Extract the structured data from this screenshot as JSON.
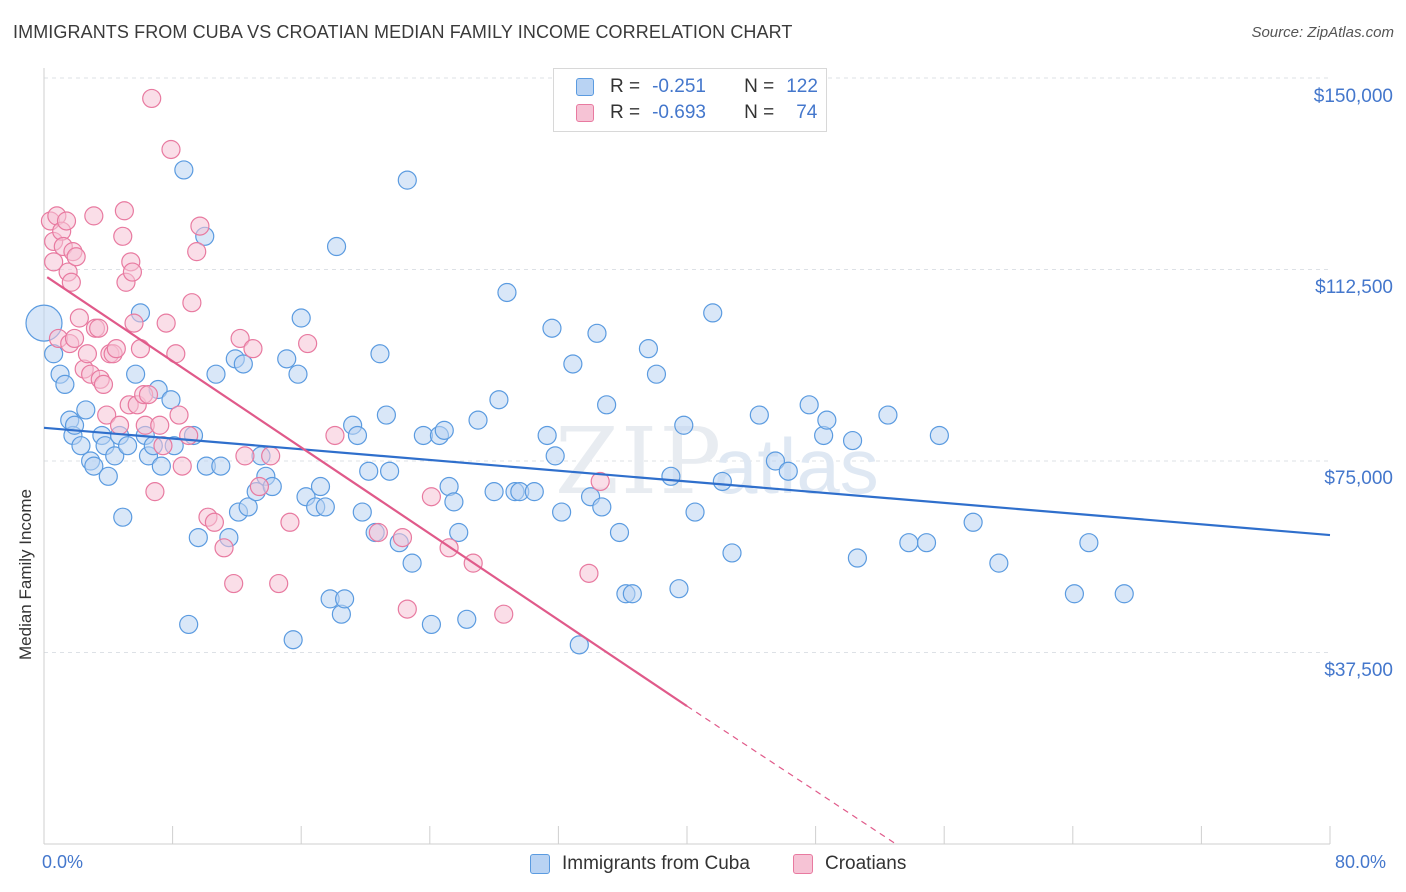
{
  "title": "IMMIGRANTS FROM CUBA VS CROATIAN MEDIAN FAMILY INCOME CORRELATION CHART",
  "source": "Source: ZipAtlas.com",
  "watermark": "ZIPatlas",
  "colors": {
    "blue": "#5b9be0",
    "blue_fill": "#b9d3f3",
    "blue_line": "#2f6fcc",
    "pink": "#e87aa0",
    "pink_fill": "#f6c3d5",
    "pink_line": "#e05a8a",
    "tick_text": "#4477cc"
  },
  "legend": {
    "rows": [
      {
        "r_label": "R =",
        "r_value": "-0.251",
        "n_label": "N =",
        "n_value": "122"
      },
      {
        "r_label": "R =",
        "r_value": "-0.693",
        "n_label": "N =",
        "n_value": "74"
      }
    ]
  },
  "bottom_legend": [
    "Immigrants from Cuba",
    "Croatians"
  ],
  "chart_data": {
    "type": "scatter",
    "title": "IMMIGRANTS FROM CUBA VS CROATIAN MEDIAN FAMILY INCOME CORRELATION CHART",
    "xlabel": "",
    "ylabel": "Median Family Income",
    "xlim": [
      0,
      80
    ],
    "ylim": [
      0,
      156000
    ],
    "x_tick_labels": [
      "0.0%",
      "80.0%"
    ],
    "y_ticks": [
      37500,
      75000,
      112500,
      150000
    ],
    "y_tick_labels": [
      "$37,500",
      "$75,000",
      "$112,500",
      "$150,000"
    ],
    "grid": true,
    "legend_placement": "top-center",
    "series": [
      {
        "name": "Immigrants from Cuba",
        "trend": {
          "x": [
            0,
            80
          ],
          "y": [
            81500,
            60500
          ]
        },
        "points": [
          [
            0.0,
            102000
          ],
          [
            0.6,
            96000
          ],
          [
            1.0,
            92000
          ],
          [
            1.3,
            90000
          ],
          [
            1.6,
            83000
          ],
          [
            1.8,
            80000
          ],
          [
            1.9,
            82000
          ],
          [
            2.3,
            78000
          ],
          [
            2.6,
            85000
          ],
          [
            2.9,
            75000
          ],
          [
            3.1,
            74000
          ],
          [
            3.6,
            80000
          ],
          [
            3.8,
            78000
          ],
          [
            4.0,
            72000
          ],
          [
            4.4,
            76000
          ],
          [
            4.7,
            80000
          ],
          [
            4.9,
            64000
          ],
          [
            5.2,
            78000
          ],
          [
            5.7,
            92000
          ],
          [
            6.0,
            104000
          ],
          [
            6.3,
            80000
          ],
          [
            6.5,
            76000
          ],
          [
            6.8,
            78000
          ],
          [
            7.1,
            89000
          ],
          [
            7.3,
            74000
          ],
          [
            7.9,
            87000
          ],
          [
            8.1,
            78000
          ],
          [
            8.7,
            132000
          ],
          [
            9.0,
            43000
          ],
          [
            9.3,
            80000
          ],
          [
            9.6,
            60000
          ],
          [
            10.0,
            119000
          ],
          [
            10.1,
            74000
          ],
          [
            10.7,
            92000
          ],
          [
            11.0,
            74000
          ],
          [
            11.5,
            60000
          ],
          [
            11.9,
            95000
          ],
          [
            12.1,
            65000
          ],
          [
            12.4,
            94000
          ],
          [
            12.7,
            66000
          ],
          [
            13.2,
            69000
          ],
          [
            13.5,
            76000
          ],
          [
            13.8,
            72000
          ],
          [
            14.2,
            70000
          ],
          [
            15.1,
            95000
          ],
          [
            15.5,
            40000
          ],
          [
            15.8,
            92000
          ],
          [
            16.0,
            103000
          ],
          [
            16.3,
            68000
          ],
          [
            16.9,
            66000
          ],
          [
            17.2,
            70000
          ],
          [
            17.5,
            66000
          ],
          [
            17.8,
            48000
          ],
          [
            18.2,
            117000
          ],
          [
            18.5,
            45000
          ],
          [
            18.7,
            48000
          ],
          [
            19.2,
            82000
          ],
          [
            19.5,
            80000
          ],
          [
            19.8,
            65000
          ],
          [
            20.2,
            73000
          ],
          [
            20.6,
            61000
          ],
          [
            20.9,
            96000
          ],
          [
            21.3,
            84000
          ],
          [
            21.5,
            73000
          ],
          [
            22.1,
            59000
          ],
          [
            22.6,
            130000
          ],
          [
            22.9,
            55000
          ],
          [
            23.6,
            80000
          ],
          [
            24.1,
            43000
          ],
          [
            24.6,
            80000
          ],
          [
            24.9,
            81000
          ],
          [
            25.2,
            70000
          ],
          [
            25.5,
            67000
          ],
          [
            25.8,
            61000
          ],
          [
            26.3,
            44000
          ],
          [
            27.0,
            83000
          ],
          [
            28.0,
            69000
          ],
          [
            28.3,
            87000
          ],
          [
            28.8,
            108000
          ],
          [
            29.3,
            69000
          ],
          [
            29.6,
            69000
          ],
          [
            30.5,
            69000
          ],
          [
            31.3,
            80000
          ],
          [
            31.6,
            101000
          ],
          [
            31.8,
            76000
          ],
          [
            32.2,
            65000
          ],
          [
            32.9,
            94000
          ],
          [
            33.3,
            39000
          ],
          [
            34.0,
            68000
          ],
          [
            34.4,
            100000
          ],
          [
            34.7,
            66000
          ],
          [
            35.0,
            86000
          ],
          [
            35.8,
            61000
          ],
          [
            36.2,
            49000
          ],
          [
            36.6,
            49000
          ],
          [
            37.6,
            97000
          ],
          [
            38.1,
            92000
          ],
          [
            39.0,
            72000
          ],
          [
            39.5,
            50000
          ],
          [
            39.8,
            82000
          ],
          [
            40.5,
            65000
          ],
          [
            41.6,
            104000
          ],
          [
            42.2,
            71000
          ],
          [
            42.8,
            57000
          ],
          [
            44.5,
            84000
          ],
          [
            45.5,
            75000
          ],
          [
            46.3,
            73000
          ],
          [
            47.6,
            86000
          ],
          [
            48.5,
            80000
          ],
          [
            48.7,
            83000
          ],
          [
            50.3,
            79000
          ],
          [
            50.6,
            56000
          ],
          [
            52.5,
            84000
          ],
          [
            53.8,
            59000
          ],
          [
            54.9,
            59000
          ],
          [
            55.7,
            80000
          ],
          [
            57.8,
            63000
          ],
          [
            59.4,
            55000
          ],
          [
            64.1,
            49000
          ],
          [
            65.0,
            59000
          ],
          [
            67.2,
            49000
          ]
        ]
      },
      {
        "name": "Croatians",
        "trend": {
          "x": [
            0.2,
            40
          ],
          "y": [
            111000,
            27000
          ]
        },
        "trend_dashed": {
          "x": [
            40,
            53
          ],
          "y": [
            27000,
            0
          ]
        },
        "points": [
          [
            0.4,
            122000
          ],
          [
            0.6,
            118000
          ],
          [
            0.6,
            114000
          ],
          [
            0.8,
            123000
          ],
          [
            0.9,
            99000
          ],
          [
            1.1,
            120000
          ],
          [
            1.2,
            117000
          ],
          [
            1.4,
            122000
          ],
          [
            1.5,
            112000
          ],
          [
            1.6,
            98000
          ],
          [
            1.7,
            110000
          ],
          [
            1.8,
            116000
          ],
          [
            1.9,
            99000
          ],
          [
            2.0,
            115000
          ],
          [
            2.2,
            103000
          ],
          [
            2.5,
            93000
          ],
          [
            2.7,
            96000
          ],
          [
            2.9,
            92000
          ],
          [
            3.1,
            123000
          ],
          [
            3.2,
            101000
          ],
          [
            3.4,
            101000
          ],
          [
            3.5,
            91000
          ],
          [
            3.7,
            90000
          ],
          [
            3.9,
            84000
          ],
          [
            4.1,
            96000
          ],
          [
            4.3,
            96000
          ],
          [
            4.5,
            97000
          ],
          [
            4.7,
            82000
          ],
          [
            4.9,
            119000
          ],
          [
            5.0,
            124000
          ],
          [
            5.1,
            110000
          ],
          [
            5.3,
            86000
          ],
          [
            5.4,
            114000
          ],
          [
            5.5,
            112000
          ],
          [
            5.6,
            102000
          ],
          [
            5.8,
            86000
          ],
          [
            6.0,
            97000
          ],
          [
            6.2,
            88000
          ],
          [
            6.3,
            82000
          ],
          [
            6.5,
            88000
          ],
          [
            6.7,
            146000
          ],
          [
            6.9,
            69000
          ],
          [
            7.2,
            82000
          ],
          [
            7.4,
            78000
          ],
          [
            7.6,
            102000
          ],
          [
            7.9,
            136000
          ],
          [
            8.2,
            96000
          ],
          [
            8.4,
            84000
          ],
          [
            8.6,
            74000
          ],
          [
            9.0,
            80000
          ],
          [
            9.2,
            106000
          ],
          [
            9.5,
            116000
          ],
          [
            9.7,
            121000
          ],
          [
            10.2,
            64000
          ],
          [
            10.6,
            63000
          ],
          [
            11.2,
            58000
          ],
          [
            11.8,
            51000
          ],
          [
            12.2,
            99000
          ],
          [
            12.5,
            76000
          ],
          [
            13.0,
            97000
          ],
          [
            13.4,
            70000
          ],
          [
            14.1,
            76000
          ],
          [
            14.6,
            51000
          ],
          [
            15.3,
            63000
          ],
          [
            16.4,
            98000
          ],
          [
            18.1,
            80000
          ],
          [
            20.8,
            61000
          ],
          [
            22.3,
            60000
          ],
          [
            22.6,
            46000
          ],
          [
            24.1,
            68000
          ],
          [
            25.2,
            58000
          ],
          [
            26.7,
            55000
          ],
          [
            28.6,
            45000
          ],
          [
            33.9,
            53000
          ],
          [
            34.6,
            71000
          ]
        ]
      }
    ]
  }
}
